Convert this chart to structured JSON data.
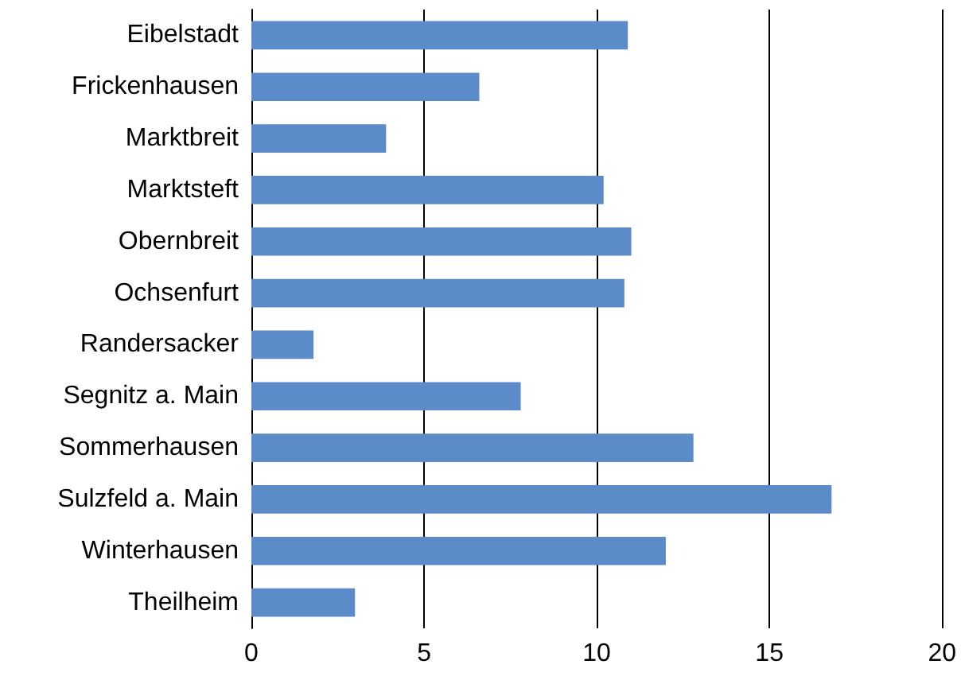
{
  "chart_data": {
    "type": "bar",
    "orientation": "horizontal",
    "categories": [
      "Eibelstadt",
      "Frickenhausen",
      "Marktbreit",
      "Marktsteft",
      "Obernbreit",
      "Ochsenfurt",
      "Randersacker",
      "Segnitz a. Main",
      "Sommerhausen",
      "Sulzfeld a. Main",
      "Winterhausen",
      "Theilheim"
    ],
    "values": [
      10.9,
      6.6,
      3.9,
      10.2,
      11.0,
      10.8,
      1.8,
      7.8,
      12.8,
      16.8,
      12.0,
      3.0
    ],
    "color": "#5b8bc9",
    "xlim": [
      0,
      20
    ],
    "xticks": [
      0,
      5,
      10,
      15,
      20
    ],
    "grid": "x"
  }
}
